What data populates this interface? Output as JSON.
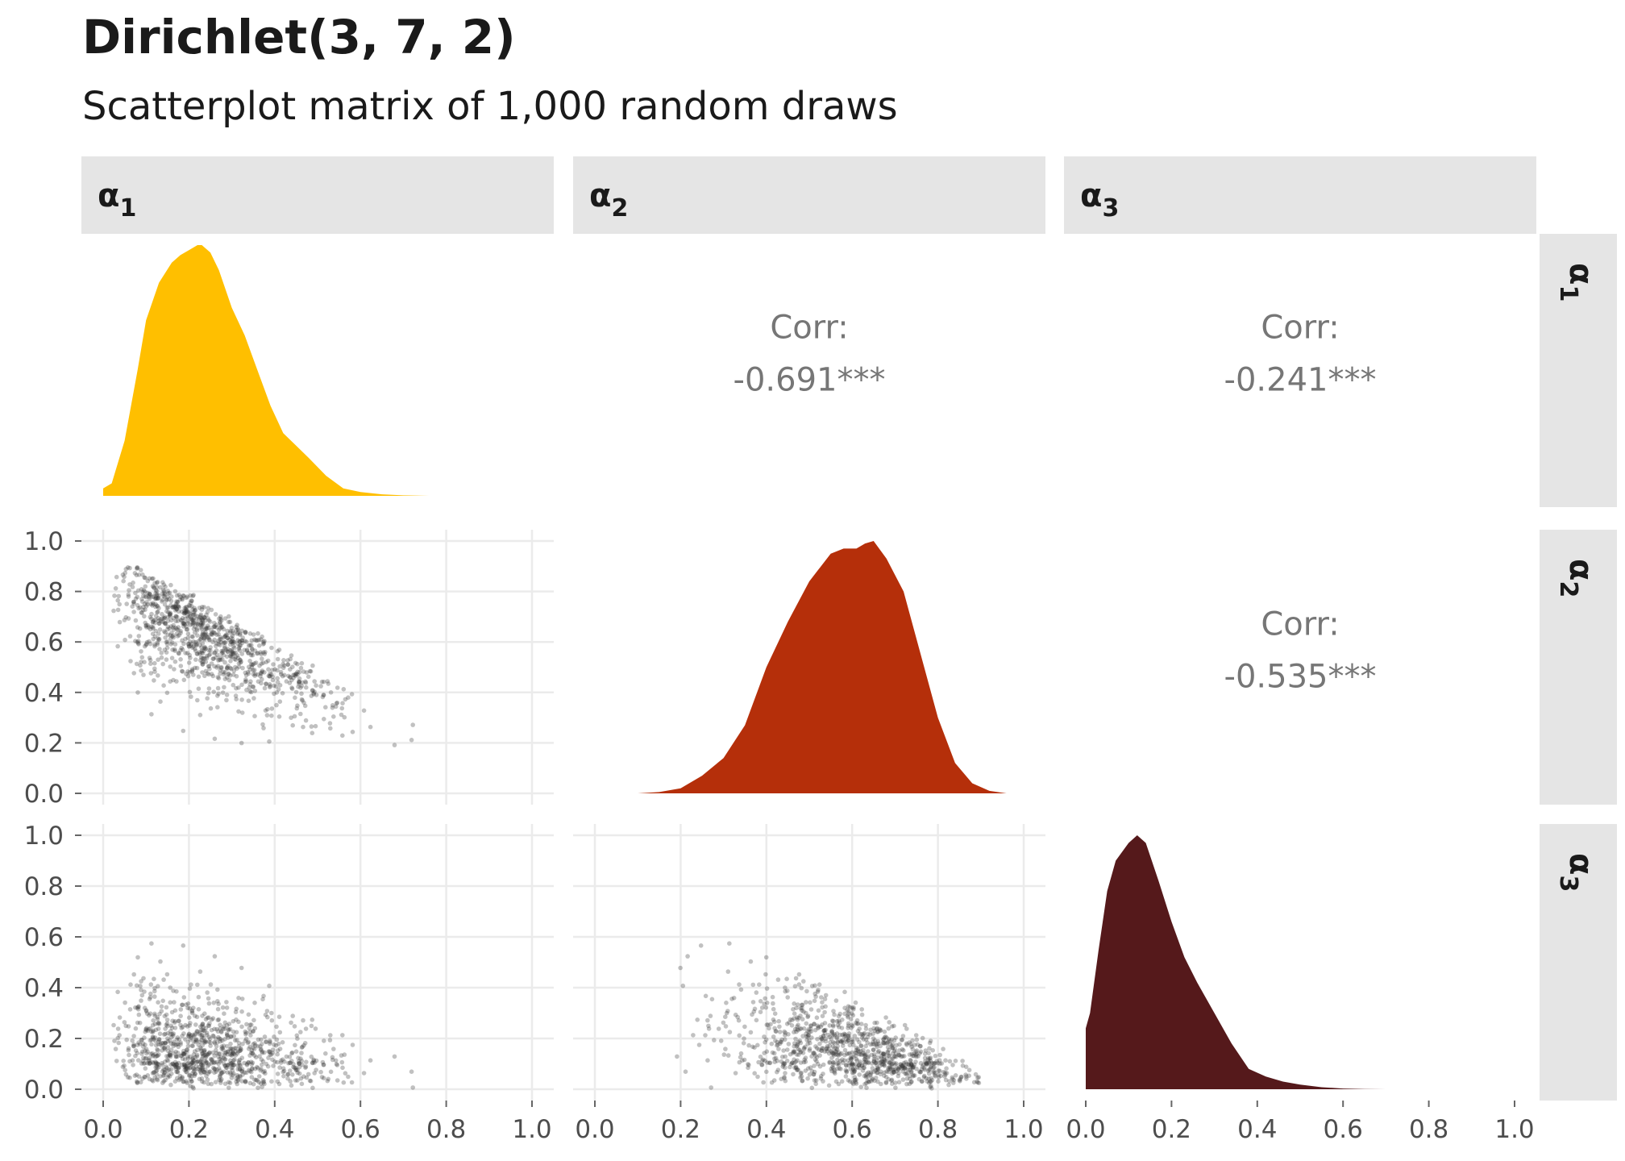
{
  "title": "Dirichlet(3, 7, 2)",
  "subtitle": "Scatterplot matrix of 1,000 random draws",
  "chart_data": {
    "type": "scatter",
    "variables": [
      {
        "id": "a1",
        "symbol": "α",
        "subscript": "1",
        "fill": "#FFBF00"
      },
      {
        "id": "a2",
        "symbol": "α",
        "subscript": "2",
        "fill": "#B52F0A"
      },
      {
        "id": "a3",
        "symbol": "α",
        "subscript": "3",
        "fill": "#55191B"
      }
    ],
    "alpha_params": [
      3,
      7,
      2
    ],
    "n_draws": 1000,
    "xlim": [
      0,
      1
    ],
    "ylim": [
      0,
      1
    ],
    "tick_labels": [
      "0.0",
      "0.2",
      "0.4",
      "0.6",
      "0.8",
      "1.0"
    ],
    "grid": true,
    "point_color": "#333333",
    "strip_fill": "#E5E5E5",
    "correlations": [
      {
        "row": 1,
        "col": 2,
        "label": "Corr:",
        "value": "-0.691***"
      },
      {
        "row": 1,
        "col": 3,
        "label": "Corr:",
        "value": "-0.241***"
      },
      {
        "row": 2,
        "col": 3,
        "label": "Corr:",
        "value": "-0.535***"
      }
    ],
    "densities": [
      {
        "variable": "a1",
        "x": [
          0.0,
          0.02,
          0.05,
          0.08,
          0.1,
          0.13,
          0.16,
          0.18,
          0.2,
          0.22,
          0.23,
          0.25,
          0.27,
          0.3,
          0.33,
          0.36,
          0.39,
          0.42,
          0.45,
          0.48,
          0.52,
          0.56,
          0.6,
          0.65,
          0.7,
          0.76
        ],
        "y": [
          0.03,
          0.05,
          0.22,
          0.5,
          0.7,
          0.85,
          0.93,
          0.96,
          0.98,
          1.0,
          1.0,
          0.97,
          0.9,
          0.75,
          0.64,
          0.5,
          0.36,
          0.25,
          0.2,
          0.15,
          0.08,
          0.03,
          0.015,
          0.006,
          0.002,
          0.0
        ]
      },
      {
        "variable": "a2",
        "x": [
          0.1,
          0.15,
          0.2,
          0.25,
          0.3,
          0.35,
          0.4,
          0.45,
          0.5,
          0.55,
          0.58,
          0.61,
          0.63,
          0.65,
          0.68,
          0.72,
          0.76,
          0.8,
          0.84,
          0.88,
          0.92,
          0.96
        ],
        "y": [
          0.0,
          0.005,
          0.02,
          0.07,
          0.14,
          0.27,
          0.5,
          0.68,
          0.84,
          0.95,
          0.97,
          0.97,
          0.99,
          1.0,
          0.93,
          0.8,
          0.55,
          0.3,
          0.12,
          0.04,
          0.01,
          0.0
        ]
      },
      {
        "variable": "a3",
        "x": [
          0.0,
          0.01,
          0.03,
          0.05,
          0.07,
          0.1,
          0.12,
          0.14,
          0.17,
          0.2,
          0.23,
          0.26,
          0.3,
          0.34,
          0.38,
          0.42,
          0.46,
          0.5,
          0.55,
          0.6,
          0.65,
          0.7
        ],
        "y": [
          0.24,
          0.3,
          0.55,
          0.78,
          0.9,
          0.97,
          1.0,
          0.97,
          0.82,
          0.66,
          0.52,
          0.42,
          0.3,
          0.18,
          0.08,
          0.05,
          0.03,
          0.018,
          0.008,
          0.003,
          0.001,
          0.0
        ]
      }
    ]
  }
}
